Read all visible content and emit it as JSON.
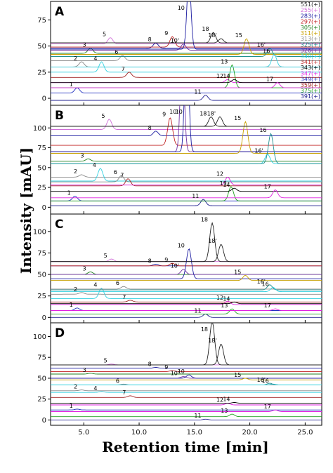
{
  "chart_data": {
    "type": "line",
    "xlabel": "Retention time [min]",
    "ylabel": "Intensity [mAU]",
    "xlim": [
      2,
      26.5
    ],
    "x_ticks": [
      "5.0",
      "10.0",
      "15.0",
      "20.0",
      "25.0"
    ],
    "x_tick_values": [
      5,
      10,
      15,
      20,
      25
    ],
    "legend_placement": "top-right",
    "legend": [
      {
        "label": "551(+)",
        "color": "#222222"
      },
      {
        "label": "255(+)",
        "color": "#d070d8"
      },
      {
        "label": "283(+)",
        "color": "#1a1aa0"
      },
      {
        "label": "297(+)",
        "color": "#c02020"
      },
      {
        "label": "305(+)",
        "color": "#208020"
      },
      {
        "label": "311(+)",
        "color": "#c8a000"
      },
      {
        "label": "313(+)",
        "color": "#888888"
      },
      {
        "label": "325(+)",
        "color": "#209090"
      },
      {
        "label": "326(+)",
        "color": "#7030a0"
      },
      {
        "label": "340(+)",
        "color": "#30d0e0"
      },
      {
        "label": "341(+)",
        "color": "#c03030"
      },
      {
        "label": "343(+)",
        "color": "#000000"
      },
      {
        "label": "347(+)",
        "color": "#e020e0"
      },
      {
        "label": "349(+)",
        "color": "#2030c0"
      },
      {
        "label": "359(+)",
        "color": "#a02020"
      },
      {
        "label": "375(+)",
        "color": "#20a020"
      },
      {
        "label": "391(+)",
        "color": "#202090"
      }
    ],
    "panels": [
      {
        "letter": "A",
        "y_ticks": [
          "0",
          "25",
          "50",
          "75"
        ],
        "y_tick_values": [
          0,
          25,
          50,
          75
        ],
        "ylim": [
          -4,
          90
        ],
        "peaks": [
          {
            "label": "1",
            "rt": 4.4,
            "height": 5,
            "baseline": 5,
            "color": "#2030c0"
          },
          {
            "label": "2",
            "rt": 4.8,
            "height": 5,
            "baseline": 30,
            "color": "#888888"
          },
          {
            "label": "3",
            "rt": 5.6,
            "height": 5,
            "baseline": 43,
            "color": "#208020"
          },
          {
            "label": "4",
            "rt": 6.6,
            "height": 10,
            "baseline": 25,
            "color": "#30d0e0"
          },
          {
            "label": "5",
            "rt": 7.4,
            "height": 6,
            "baseline": 52,
            "color": "#d070d8"
          },
          {
            "label": "6",
            "rt": 8.5,
            "height": 5,
            "baseline": 36,
            "color": "#888888"
          },
          {
            "label": "7",
            "rt": 9.1,
            "height": 5,
            "baseline": 20,
            "color": "#a02020"
          },
          {
            "label": "8",
            "rt": 11.5,
            "height": 5,
            "baseline": 48,
            "color": "#1a1aa0"
          },
          {
            "label": "9",
            "rt": 13.0,
            "height": 10,
            "baseline": 49,
            "color": "#c02020"
          },
          {
            "label": "10'",
            "rt": 14.0,
            "height": 6,
            "baseline": 46,
            "color": "#7030a0"
          },
          {
            "label": "10",
            "rt": 14.5,
            "height": 70,
            "baseline": 47,
            "color": "#1a1aa0"
          },
          {
            "label": "11",
            "rt": 16.0,
            "height": 5,
            "baseline": -2,
            "color": "#202090"
          },
          {
            "label": "12",
            "rt": 18.0,
            "height": 3,
            "baseline": 15,
            "color": "#e020e0"
          },
          {
            "label": "13",
            "rt": 18.4,
            "height": 22,
            "baseline": 10,
            "color": "#20a020"
          },
          {
            "label": "14",
            "rt": 18.6,
            "height": 3,
            "baseline": 15,
            "color": "#000000"
          },
          {
            "label": "15",
            "rt": 19.7,
            "height": 15,
            "baseline": 42,
            "color": "#c8a000"
          },
          {
            "label": "16'",
            "rt": 21.8,
            "height": 8,
            "baseline": 40,
            "color": "#209090"
          },
          {
            "label": "16",
            "rt": 22.2,
            "height": 12,
            "baseline": 30,
            "color": "#30d0e0"
          },
          {
            "label": "17",
            "rt": 22.5,
            "height": 5,
            "baseline": 10,
            "color": "#e020e0"
          },
          {
            "label": "18",
            "rt": 16.7,
            "height": 10,
            "baseline": 53,
            "color": "#222222"
          },
          {
            "label": "18'",
            "rt": 17.4,
            "height": 4,
            "baseline": 53,
            "color": "#222222"
          }
        ]
      },
      {
        "letter": "B",
        "y_ticks": [
          "0",
          "25",
          "50",
          "75",
          "100"
        ],
        "y_tick_values": [
          0,
          25,
          50,
          75,
          100
        ],
        "ylim": [
          -5,
          125
        ],
        "peaks": [
          {
            "label": "1",
            "rt": 4.2,
            "height": 6,
            "baseline": 8,
            "color": "#2030c0"
          },
          {
            "label": "2",
            "rt": 4.8,
            "height": 3,
            "baseline": 38,
            "color": "#888888"
          },
          {
            "label": "3",
            "rt": 5.4,
            "height": 3,
            "baseline": 58,
            "color": "#208020"
          },
          {
            "label": "4",
            "rt": 6.5,
            "height": 16,
            "baseline": 33,
            "color": "#30d0e0"
          },
          {
            "label": "5",
            "rt": 7.3,
            "height": 13,
            "baseline": 98,
            "color": "#d070d8"
          },
          {
            "label": "6",
            "rt": 8.4,
            "height": 8,
            "baseline": 32,
            "color": "#888888"
          },
          {
            "label": "7",
            "rt": 9.0,
            "height": 9,
            "baseline": 27,
            "color": "#a02020"
          },
          {
            "label": "8",
            "rt": 11.5,
            "height": 6,
            "baseline": 90,
            "color": "#1a1aa0"
          },
          {
            "label": "9",
            "rt": 12.8,
            "height": 35,
            "baseline": 78,
            "color": "#c02020"
          },
          {
            "label": "10'",
            "rt": 13.9,
            "height": 130,
            "baseline": 70,
            "color": "#7030a0"
          },
          {
            "label": "10",
            "rt": 14.3,
            "height": 150,
            "baseline": 70,
            "color": "#1a1aa0"
          },
          {
            "label": "11",
            "rt": 15.8,
            "height": 8,
            "baseline": 2,
            "color": "#202090"
          },
          {
            "label": "12",
            "rt": 18.0,
            "height": 10,
            "baseline": 28,
            "color": "#e020e0"
          },
          {
            "label": "13",
            "rt": 18.3,
            "height": 18,
            "baseline": 8,
            "color": "#20a020"
          },
          {
            "label": "14",
            "rt": 18.6,
            "height": 4,
            "baseline": 20,
            "color": "#000000"
          },
          {
            "label": "15",
            "rt": 19.6,
            "height": 40,
            "baseline": 68,
            "color": "#c8a000"
          },
          {
            "label": "16'",
            "rt": 21.6,
            "height": 12,
            "baseline": 55,
            "color": "#30d0e0"
          },
          {
            "label": "16",
            "rt": 21.9,
            "height": 38,
            "baseline": 55,
            "color": "#209090"
          },
          {
            "label": "17",
            "rt": 22.3,
            "height": 10,
            "baseline": 12,
            "color": "#e020e0"
          },
          {
            "label": "18",
            "rt": 16.5,
            "height": 12,
            "baseline": 102,
            "color": "#222222"
          },
          {
            "label": "18'",
            "rt": 17.3,
            "height": 12,
            "baseline": 102,
            "color": "#222222"
          }
        ]
      },
      {
        "letter": "C",
        "y_ticks": [
          "0",
          "25",
          "50",
          "75",
          "100"
        ],
        "y_tick_values": [
          0,
          25,
          50,
          75,
          100
        ],
        "ylim": [
          -3,
          117
        ],
        "peaks": [
          {
            "label": "1",
            "rt": 4.4,
            "height": 3,
            "baseline": 8,
            "color": "#2030c0"
          },
          {
            "label": "2",
            "rt": 4.8,
            "height": 2,
            "baseline": 27,
            "color": "#888888"
          },
          {
            "label": "3",
            "rt": 5.6,
            "height": 3,
            "baseline": 50,
            "color": "#208020"
          },
          {
            "label": "4",
            "rt": 6.6,
            "height": 12,
            "baseline": 22,
            "color": "#30d0e0"
          },
          {
            "label": "5",
            "rt": 7.5,
            "height": 3,
            "baseline": 65,
            "color": "#d070d8"
          },
          {
            "label": "6",
            "rt": 8.6,
            "height": 3,
            "baseline": 33,
            "color": "#888888"
          },
          {
            "label": "7",
            "rt": 9.2,
            "height": 2,
            "baseline": 18,
            "color": "#a02020"
          },
          {
            "label": "8",
            "rt": 11.5,
            "height": 2,
            "baseline": 60,
            "color": "#1a1aa0"
          },
          {
            "label": "9",
            "rt": 13.0,
            "height": 3,
            "baseline": 60,
            "color": "#c02020"
          },
          {
            "label": "10'",
            "rt": 14.0,
            "height": 6,
            "baseline": 50,
            "color": "#7030a0"
          },
          {
            "label": "10",
            "rt": 14.5,
            "height": 35,
            "baseline": 45,
            "color": "#1a1aa0"
          },
          {
            "label": "11",
            "rt": 16.0,
            "height": 4,
            "baseline": 0,
            "color": "#202090"
          },
          {
            "label": "12",
            "rt": 18.0,
            "height": 4,
            "baseline": 15,
            "color": "#e020e0"
          },
          {
            "label": "13",
            "rt": 18.4,
            "height": 6,
            "baseline": 4,
            "color": "#20a020"
          },
          {
            "label": "14",
            "rt": 18.6,
            "height": 2,
            "baseline": 16,
            "color": "#000000"
          },
          {
            "label": "15",
            "rt": 19.6,
            "height": 6,
            "baseline": 43,
            "color": "#c8a000"
          },
          {
            "label": "16'",
            "rt": 21.8,
            "height": 6,
            "baseline": 32,
            "color": "#209090"
          },
          {
            "label": "16",
            "rt": 22.1,
            "height": 5,
            "baseline": 30,
            "color": "#30d0e0"
          },
          {
            "label": "17",
            "rt": 22.3,
            "height": 2,
            "baseline": 8,
            "color": "#e020e0"
          },
          {
            "label": "18",
            "rt": 16.6,
            "height": 45,
            "baseline": 65,
            "color": "#222222"
          },
          {
            "label": "18'",
            "rt": 17.4,
            "height": 20,
            "baseline": 65,
            "color": "#222222"
          }
        ]
      },
      {
        "letter": "D",
        "y_ticks": [
          "0",
          "25",
          "50",
          "75",
          "100"
        ],
        "y_tick_values": [
          0,
          25,
          50,
          75,
          100
        ],
        "ylim": [
          -3,
          113
        ],
        "peaks": [
          {
            "label": "1",
            "rt": 4.4,
            "height": 1,
            "baseline": 12,
            "color": "#2030c0"
          },
          {
            "label": "2",
            "rt": 4.8,
            "height": 1,
            "baseline": 35,
            "color": "#888888"
          },
          {
            "label": "3",
            "rt": 5.6,
            "height": 1,
            "baseline": 55,
            "color": "#208020"
          },
          {
            "label": "4",
            "rt": 6.6,
            "height": 1,
            "baseline": 33,
            "color": "#30d0e0"
          },
          {
            "label": "5",
            "rt": 7.5,
            "height": 1,
            "baseline": 66,
            "color": "#d070d8"
          },
          {
            "label": "6",
            "rt": 8.6,
            "height": 1,
            "baseline": 42,
            "color": "#888888"
          },
          {
            "label": "7",
            "rt": 9.2,
            "height": 2,
            "baseline": 27,
            "color": "#a02020"
          },
          {
            "label": "8",
            "rt": 11.5,
            "height": 1,
            "baseline": 62,
            "color": "#1a1aa0"
          },
          {
            "label": "9",
            "rt": 13.0,
            "height": 1,
            "baseline": 58,
            "color": "#c02020"
          },
          {
            "label": "10'",
            "rt": 14.0,
            "height": 2,
            "baseline": 50,
            "color": "#7030a0"
          },
          {
            "label": "10",
            "rt": 14.5,
            "height": 4,
            "baseline": 50,
            "color": "#1a1aa0"
          },
          {
            "label": "11",
            "rt": 16.0,
            "height": 1,
            "baseline": 0,
            "color": "#202090"
          },
          {
            "label": "12",
            "rt": 18.0,
            "height": 2,
            "baseline": 18,
            "color": "#e020e0"
          },
          {
            "label": "13",
            "rt": 18.4,
            "height": 3,
            "baseline": 4,
            "color": "#20a020"
          },
          {
            "label": "14",
            "rt": 18.6,
            "height": 1,
            "baseline": 20,
            "color": "#000000"
          },
          {
            "label": "15",
            "rt": 19.6,
            "height": 2,
            "baseline": 48,
            "color": "#c8a000"
          },
          {
            "label": "16'",
            "rt": 21.8,
            "height": 2,
            "baseline": 42,
            "color": "#209090"
          },
          {
            "label": "16",
            "rt": 22.1,
            "height": 1,
            "baseline": 42,
            "color": "#30d0e0"
          },
          {
            "label": "17",
            "rt": 22.3,
            "height": 2,
            "baseline": 10,
            "color": "#e020e0"
          },
          {
            "label": "18",
            "rt": 16.6,
            "height": 52,
            "baseline": 66,
            "color": "#222222"
          },
          {
            "label": "18'",
            "rt": 17.4,
            "height": 25,
            "baseline": 66,
            "color": "#222222"
          }
        ]
      }
    ]
  }
}
